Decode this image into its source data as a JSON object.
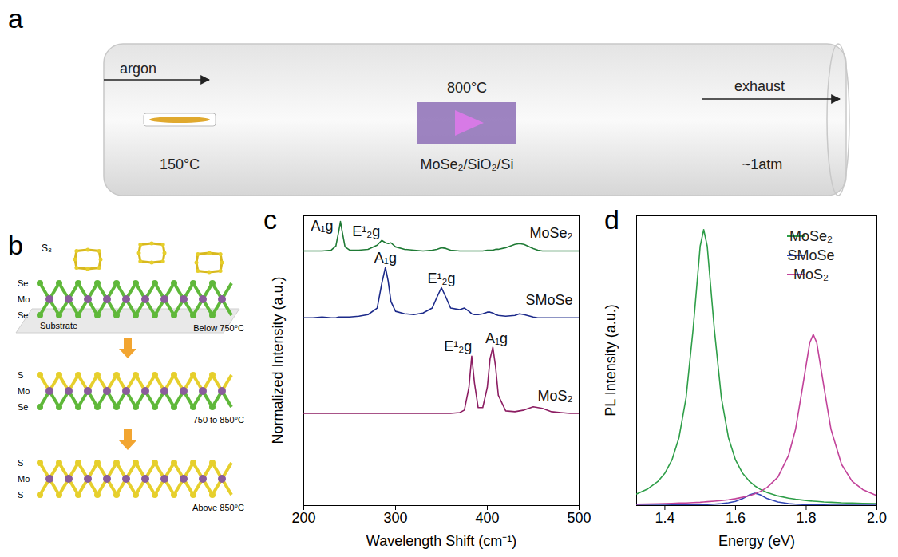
{
  "diagram_a": {
    "panel": "a",
    "gas": "argon",
    "source_temperature": "150°C",
    "growth_temperature": "800°C",
    "sample": "MoSe₂/SiO₂/Si",
    "outlet": "exhaust",
    "pressure": "~1atm"
  },
  "diagram_b": {
    "panel": "b",
    "molecule": "S₈",
    "substrate": "Substrate",
    "stages": [
      {
        "layers": [
          "Se",
          "Mo",
          "Se"
        ],
        "temperature": "Below 750°C"
      },
      {
        "layers": [
          "S",
          "Mo",
          "Se"
        ],
        "temperature": "750 to 850°C"
      },
      {
        "layers": [
          "S",
          "Mo",
          "S"
        ],
        "temperature": "Above 850°C"
      }
    ]
  },
  "chart_data": [
    {
      "panel": "c",
      "type": "line",
      "x_label": "Wavelength Shift (cm⁻¹)",
      "y_label": "Normalized Intensity (a.u.)",
      "x": [
        200,
        210,
        220,
        230,
        235,
        238,
        240,
        242,
        245,
        250,
        260,
        270,
        280,
        285,
        289,
        292,
        295,
        300,
        310,
        320,
        330,
        340,
        345,
        350,
        355,
        360,
        370,
        375,
        380,
        383,
        386,
        390,
        395,
        400,
        403,
        406,
        409,
        412,
        420,
        430,
        435,
        440,
        450,
        455,
        460,
        470,
        480,
        490,
        500
      ],
      "series": [
        {
          "name": "MoSe₂",
          "color": "#1f7a35",
          "values": [
            3.12,
            3.12,
            3.12,
            3.13,
            3.18,
            3.35,
            3.48,
            3.35,
            3.17,
            3.13,
            3.13,
            3.14,
            3.19,
            3.25,
            3.22,
            3.21,
            3.22,
            3.17,
            3.14,
            3.13,
            3.12,
            3.13,
            3.14,
            3.16,
            3.15,
            3.13,
            3.12,
            3.12,
            3.12,
            3.12,
            3.12,
            3.12,
            3.12,
            3.13,
            3.13,
            3.13,
            3.14,
            3.14,
            3.16,
            3.2,
            3.21,
            3.2,
            3.15,
            3.13,
            3.12,
            3.12,
            3.12,
            3.12,
            3.12
          ]
        },
        {
          "name": "SMoSe",
          "color": "#1c2a8a",
          "values": [
            2.3,
            2.3,
            2.31,
            2.3,
            2.3,
            2.31,
            2.31,
            2.31,
            2.31,
            2.31,
            2.32,
            2.34,
            2.42,
            2.72,
            2.92,
            2.75,
            2.5,
            2.38,
            2.35,
            2.34,
            2.36,
            2.42,
            2.55,
            2.67,
            2.55,
            2.42,
            2.4,
            2.42,
            2.38,
            2.35,
            2.34,
            2.34,
            2.35,
            2.37,
            2.37,
            2.36,
            2.34,
            2.33,
            2.32,
            2.33,
            2.35,
            2.34,
            2.31,
            2.3,
            2.3,
            2.3,
            2.3,
            2.3,
            2.3
          ]
        },
        {
          "name": "MoS₂",
          "color": "#8c1d62",
          "values": [
            1.13,
            1.13,
            1.13,
            1.13,
            1.13,
            1.13,
            1.13,
            1.13,
            1.13,
            1.13,
            1.13,
            1.13,
            1.13,
            1.13,
            1.13,
            1.13,
            1.13,
            1.13,
            1.13,
            1.13,
            1.13,
            1.13,
            1.13,
            1.13,
            1.13,
            1.13,
            1.14,
            1.17,
            1.45,
            1.83,
            1.5,
            1.2,
            1.2,
            1.45,
            1.8,
            1.94,
            1.7,
            1.35,
            1.16,
            1.15,
            1.16,
            1.17,
            1.21,
            1.2,
            1.19,
            1.15,
            1.14,
            1.13,
            1.13
          ]
        }
      ],
      "annotations": [
        {
          "text": "A₁g",
          "x": 220,
          "y": 3.43
        },
        {
          "text": "E¹₂g",
          "x": 268,
          "y": 3.36
        },
        {
          "text": "A₁g",
          "x": 289,
          "y": 3.03
        },
        {
          "text": "E¹₂g",
          "x": 350,
          "y": 2.78
        },
        {
          "text": "E¹₂g",
          "x": 368,
          "y": 1.95
        },
        {
          "text": "A₁g",
          "x": 410,
          "y": 2.05
        }
      ],
      "xlim": [
        200,
        500
      ],
      "xticks": [
        200,
        300,
        400,
        500
      ],
      "ylim": [
        0,
        3.55
      ],
      "tick_labels": "x"
    },
    {
      "panel": "d",
      "type": "line",
      "x_label": "Energy (eV)",
      "y_label": "PL Intensity (a.u.)",
      "x": [
        1.32,
        1.35,
        1.38,
        1.4,
        1.42,
        1.44,
        1.46,
        1.48,
        1.5,
        1.51,
        1.52,
        1.54,
        1.56,
        1.58,
        1.6,
        1.62,
        1.64,
        1.655,
        1.67,
        1.69,
        1.72,
        1.75,
        1.77,
        1.79,
        1.81,
        1.82,
        1.83,
        1.85,
        1.87,
        1.9,
        1.93,
        1.96,
        2.0
      ],
      "series": [
        {
          "name": "MoSe₂",
          "color": "#2e9e48",
          "values": [
            0.042,
            0.059,
            0.087,
            0.117,
            0.165,
            0.246,
            0.39,
            0.64,
            0.94,
            1.0,
            0.94,
            0.64,
            0.39,
            0.246,
            0.165,
            0.117,
            0.087,
            0.071,
            0.059,
            0.047,
            0.035,
            0.027,
            0.023,
            0.02,
            0.017,
            0.016,
            0.015,
            0.013,
            0.012,
            0.01,
            0.009,
            0.008,
            0.007
          ]
        },
        {
          "name": "SMoSe",
          "color": "#3347b5",
          "values": [
            0.001,
            0.001,
            0.001,
            0.001,
            0.002,
            0.002,
            0.002,
            0.002,
            0.003,
            0.003,
            0.004,
            0.005,
            0.007,
            0.01,
            0.015,
            0.025,
            0.039,
            0.045,
            0.039,
            0.025,
            0.013,
            0.007,
            0.005,
            0.004,
            0.003,
            0.003,
            0.002,
            0.002,
            0.001,
            0.001,
            0.001,
            0.001,
            0.001
          ]
        },
        {
          "name": "MoS₂",
          "color": "#c2439a",
          "values": [
            0.005,
            0.006,
            0.0064,
            0.007,
            0.008,
            0.009,
            0.0095,
            0.011,
            0.012,
            0.013,
            0.014,
            0.016,
            0.018,
            0.021,
            0.025,
            0.03,
            0.036,
            0.043,
            0.051,
            0.066,
            0.103,
            0.181,
            0.277,
            0.431,
            0.59,
            0.62,
            0.59,
            0.431,
            0.277,
            0.149,
            0.088,
            0.058,
            0.036
          ]
        }
      ],
      "xlim": [
        1.32,
        2.0
      ],
      "xticks": [
        1.4,
        1.6,
        1.8,
        {
          "value": 2.0,
          "label": "2.0"
        }
      ],
      "ylim": [
        0,
        1.05
      ],
      "tick_labels": "x",
      "legend": "top-right"
    }
  ]
}
